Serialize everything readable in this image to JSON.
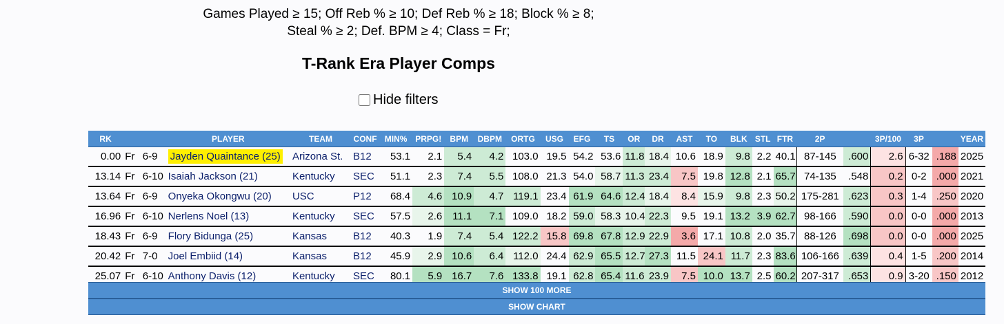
{
  "filters": {
    "line1": "Games Played ≥ 15; Off Reb % ≥ 10; Def Reb % ≥ 18; Block % ≥ 8;",
    "line2": "Steal % ≥ 2; Def. BPM ≥ 4; Class = Fr;"
  },
  "page_title": "T-Rank Era Player Comps",
  "hide_filters_label": "Hide filters",
  "colors": {
    "header_blue": "#4f8fd1",
    "highlight_yellow": "#ffef00",
    "g1": "#e8f5eb",
    "g2": "#cdebd5",
    "g3": "#b4e1c1",
    "r1": "#fde3e3",
    "r2": "#f8c6c6",
    "r3": "#f4a9a9"
  },
  "columns": [
    "RK",
    "",
    "",
    "PLAYER",
    "TEAM",
    "CONF",
    "MIN%",
    "PRPG!",
    "BPM",
    "DBPM",
    "ORTG",
    "USG",
    "EFG",
    "TS",
    "OR",
    "DR",
    "AST",
    "TO",
    "BLK",
    "STL",
    "FTR",
    "2P",
    "",
    "3P/100",
    "3P",
    "",
    "YEAR"
  ],
  "rows": [
    {
      "rk": "0.00",
      "cls": "Fr",
      "ht": "6-9",
      "player": "Jayden Quaintance (25)",
      "highlight": true,
      "team": "Arizona St.",
      "conf": "B12",
      "min": "53.1",
      "prpg": "2.1",
      "bpm": "5.4",
      "dbpm": "4.2",
      "ortg": "103.0",
      "usg": "19.5",
      "efg": "54.2",
      "ts": "53.6",
      "or": "11.8",
      "dr": "18.4",
      "ast": "10.6",
      "to": "18.9",
      "blk": "9.8",
      "stl": "2.2",
      "ftr": "40.1",
      "p2": "87-145",
      "p2pct": ".600",
      "p3_100": "2.6",
      "p3": "6-32",
      "p3pct": ".188",
      "year": "2025",
      "shade": {
        "bpm": "g2",
        "dbpm": "g2",
        "or": "g2",
        "dr": "g1",
        "blk": "g2",
        "p2pct": "g2",
        "p3_100": "r1",
        "p3pct": "r3"
      }
    },
    {
      "rk": "13.14",
      "cls": "Fr",
      "ht": "6-10",
      "player": "Isaiah Jackson (21)",
      "highlight": false,
      "team": "Kentucky",
      "conf": "SEC",
      "min": "51.1",
      "prpg": "2.3",
      "bpm": "7.4",
      "dbpm": "5.5",
      "ortg": "108.0",
      "usg": "21.3",
      "efg": "54.0",
      "ts": "58.7",
      "or": "11.3",
      "dr": "23.4",
      "ast": "7.5",
      "to": "19.8",
      "blk": "12.8",
      "stl": "2.1",
      "ftr": "65.7",
      "p2": "74-135",
      "p2pct": ".548",
      "p3_100": "0.2",
      "p3": "0-2",
      "p3pct": ".000",
      "year": "2021",
      "shade": {
        "bpm": "g2",
        "dbpm": "g2",
        "ts": "g1",
        "or": "g2",
        "dr": "g2",
        "ast": "r2",
        "blk": "g3",
        "ftr": "g3",
        "p3_100": "r2",
        "p3pct": "r3"
      }
    },
    {
      "rk": "13.64",
      "cls": "Fr",
      "ht": "6-9",
      "player": "Onyeka Okongwu (20)",
      "highlight": false,
      "team": "USC",
      "conf": "P12",
      "min": "68.4",
      "prpg": "4.6",
      "bpm": "10.9",
      "dbpm": "4.7",
      "ortg": "119.1",
      "usg": "23.4",
      "efg": "61.9",
      "ts": "64.6",
      "or": "12.4",
      "dr": "18.4",
      "ast": "8.4",
      "to": "15.9",
      "blk": "9.8",
      "stl": "2.3",
      "ftr": "50.2",
      "p2": "175-281",
      "p2pct": ".623",
      "p3_100": "0.3",
      "p3": "1-4",
      "p3pct": ".250",
      "year": "2020",
      "shade": {
        "prpg": "g2",
        "bpm": "g3",
        "dbpm": "g2",
        "ortg": "g2",
        "efg": "g3",
        "ts": "g3",
        "or": "g2",
        "dr": "g1",
        "ast": "r1",
        "to": "g1",
        "blk": "g2",
        "ftr": "g1",
        "p2pct": "g2",
        "p3_100": "r2",
        "p3pct": "r2"
      }
    },
    {
      "rk": "16.96",
      "cls": "Fr",
      "ht": "6-10",
      "player": "Nerlens Noel (13)",
      "highlight": false,
      "team": "Kentucky",
      "conf": "SEC",
      "min": "57.5",
      "prpg": "2.6",
      "bpm": "11.1",
      "dbpm": "7.1",
      "ortg": "109.0",
      "usg": "18.2",
      "efg": "59.0",
      "ts": "58.3",
      "or": "10.4",
      "dr": "22.3",
      "ast": "9.5",
      "to": "19.1",
      "blk": "13.2",
      "stl": "3.9",
      "ftr": "62.7",
      "p2": "98-166",
      "p2pct": ".590",
      "p3_100": "0.0",
      "p3": "0-0",
      "p3pct": ".000",
      "year": "2013",
      "shade": {
        "prpg": "g1",
        "bpm": "g3",
        "dbpm": "g3",
        "efg": "g2",
        "ts": "g1",
        "or": "g1",
        "dr": "g2",
        "blk": "g3",
        "stl": "g3",
        "ftr": "g3",
        "p2pct": "g2",
        "p3_100": "r2",
        "p3pct": "r3"
      }
    },
    {
      "rk": "18.43",
      "cls": "Fr",
      "ht": "6-9",
      "player": "Flory Bidunga (25)",
      "highlight": false,
      "team": "Kansas",
      "conf": "B12",
      "min": "40.3",
      "prpg": "1.9",
      "bpm": "7.4",
      "dbpm": "5.4",
      "ortg": "122.2",
      "usg": "15.8",
      "efg": "69.8",
      "ts": "67.8",
      "or": "12.9",
      "dr": "22.9",
      "ast": "3.6",
      "to": "17.1",
      "blk": "10.8",
      "stl": "2.0",
      "ftr": "35.7",
      "p2": "88-126",
      "p2pct": ".698",
      "p3_100": "0.0",
      "p3": "0-0",
      "p3pct": ".000",
      "year": "2025",
      "shade": {
        "bpm": "g2",
        "dbpm": "g2",
        "ortg": "g2",
        "usg": "r2",
        "efg": "g3",
        "ts": "g3",
        "or": "g2",
        "dr": "g2",
        "ast": "r3",
        "blk": "g2",
        "p2pct": "g3",
        "p3_100": "r2",
        "p3pct": "r3"
      }
    },
    {
      "rk": "20.42",
      "cls": "Fr",
      "ht": "7-0",
      "player": "Joel Embiid (14)",
      "highlight": false,
      "team": "Kansas",
      "conf": "B12",
      "min": "45.9",
      "prpg": "2.9",
      "bpm": "10.6",
      "dbpm": "6.4",
      "ortg": "112.0",
      "usg": "24.4",
      "efg": "62.9",
      "ts": "65.5",
      "or": "12.7",
      "dr": "27.3",
      "ast": "11.5",
      "to": "24.1",
      "blk": "11.7",
      "stl": "2.3",
      "ftr": "83.6",
      "p2": "106-166",
      "p2pct": ".639",
      "p3_100": "0.4",
      "p3": "1-5",
      "p3pct": ".200",
      "year": "2014",
      "shade": {
        "prpg": "g1",
        "bpm": "g3",
        "dbpm": "g2",
        "ortg": "g1",
        "efg": "g2",
        "ts": "g3",
        "or": "g2",
        "dr": "g3",
        "to": "r2",
        "blk": "g2",
        "ftr": "g3",
        "p2pct": "g2",
        "p3_100": "r1",
        "p3pct": "r2"
      }
    },
    {
      "rk": "25.07",
      "cls": "Fr",
      "ht": "6-10",
      "player": "Anthony Davis (12)",
      "highlight": false,
      "team": "Kentucky",
      "conf": "SEC",
      "min": "80.1",
      "prpg": "5.9",
      "bpm": "16.7",
      "dbpm": "7.6",
      "ortg": "133.8",
      "usg": "19.1",
      "efg": "62.8",
      "ts": "65.4",
      "or": "11.6",
      "dr": "23.9",
      "ast": "7.5",
      "to": "10.0",
      "blk": "13.7",
      "stl": "2.5",
      "ftr": "60.2",
      "p2": "207-317",
      "p2pct": ".653",
      "p3_100": "0.9",
      "p3": "3-20",
      "p3pct": ".150",
      "year": "2012",
      "shade": {
        "prpg": "g3",
        "bpm": "g3",
        "dbpm": "g3",
        "ortg": "g3",
        "efg": "g2",
        "ts": "g3",
        "or": "g2",
        "dr": "g2",
        "ast": "r2",
        "to": "g3",
        "blk": "g3",
        "ftr": "g3",
        "p2pct": "g2",
        "p3_100": "r1",
        "p3pct": "r2"
      }
    }
  ],
  "buttons": {
    "more": "SHOW 100 MORE",
    "chart": "SHOW CHART"
  }
}
